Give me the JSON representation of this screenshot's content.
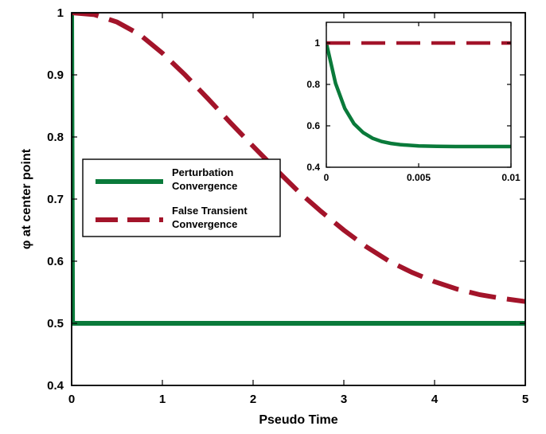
{
  "chart_data": [
    {
      "type": "line",
      "title": "",
      "xlabel": "Pseudo Time",
      "ylabel": "φ at center point",
      "xlim": [
        0,
        5
      ],
      "ylim": [
        0.4,
        1
      ],
      "xticks": [
        0,
        1,
        2,
        3,
        4,
        5
      ],
      "xtick_labels": [
        "0",
        "1",
        "2",
        "3",
        "4",
        "5"
      ],
      "yticks": [
        0.4,
        0.5,
        0.6,
        0.7,
        0.8,
        0.9,
        1
      ],
      "ytick_labels": [
        "0.4",
        "0.5",
        "0.6",
        "0.7",
        "0.8",
        "0.9",
        "1"
      ],
      "grid": false,
      "legend_position": "middle-left",
      "series": [
        {
          "name": "Perturbation Convergence",
          "color": "#0a7a3a",
          "style": "solid",
          "x": [
            0,
            0.01,
            0.02,
            0.05,
            0.5,
            1,
            2,
            3,
            4,
            5
          ],
          "y": [
            1.0,
            0.5,
            0.5,
            0.5,
            0.5,
            0.5,
            0.5,
            0.5,
            0.5,
            0.5
          ]
        },
        {
          "name": "False Transient Convergence",
          "color": "#a3142a",
          "style": "dashed",
          "x": [
            0,
            0.25,
            0.5,
            0.75,
            1.0,
            1.25,
            1.5,
            1.75,
            2.0,
            2.25,
            2.5,
            2.75,
            3.0,
            3.25,
            3.5,
            3.75,
            4.0,
            4.25,
            4.5,
            4.75,
            5.0
          ],
          "y": [
            1.0,
            0.997,
            0.985,
            0.965,
            0.935,
            0.9,
            0.862,
            0.823,
            0.785,
            0.748,
            0.712,
            0.68,
            0.65,
            0.623,
            0.6,
            0.582,
            0.567,
            0.555,
            0.546,
            0.54,
            0.535
          ]
        }
      ]
    },
    {
      "type": "line",
      "title": "",
      "xlabel": "",
      "ylabel": "",
      "xlim": [
        0,
        0.01
      ],
      "ylim": [
        0.4,
        1.1
      ],
      "xticks": [
        0,
        0.005,
        0.01
      ],
      "xtick_labels": [
        "0",
        "0.005",
        "0.01"
      ],
      "yticks": [
        0.4,
        0.6,
        0.8,
        1
      ],
      "ytick_labels": [
        "0.4",
        "0.6",
        "0.8",
        "1"
      ],
      "grid": false,
      "series": [
        {
          "name": "Perturbation Convergence",
          "color": "#0a7a3a",
          "style": "solid",
          "x": [
            0,
            0.0005,
            0.001,
            0.0015,
            0.002,
            0.0025,
            0.003,
            0.0035,
            0.004,
            0.005,
            0.006,
            0.007,
            0.008,
            0.009,
            0.01
          ],
          "y": [
            1.0,
            0.805,
            0.684,
            0.61,
            0.567,
            0.54,
            0.524,
            0.515,
            0.509,
            0.503,
            0.501,
            0.5,
            0.5,
            0.5,
            0.5
          ]
        },
        {
          "name": "False Transient Convergence",
          "color": "#a3142a",
          "style": "dashed",
          "x": [
            0,
            0.01
          ],
          "y": [
            1.0,
            1.0
          ]
        }
      ]
    }
  ],
  "legend": {
    "items": [
      {
        "line1": "Perturbation",
        "line2": "Convergence",
        "color": "#0a7a3a",
        "style": "solid"
      },
      {
        "line1": "False Transient",
        "line2": "Convergence",
        "color": "#a3142a",
        "style": "dashed"
      }
    ]
  }
}
